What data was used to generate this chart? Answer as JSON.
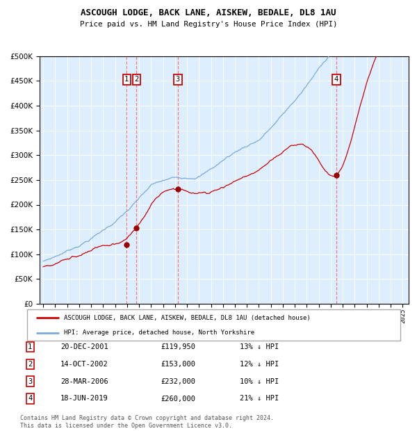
{
  "title": "ASCOUGH LODGE, BACK LANE, AISKEW, BEDALE, DL8 1AU",
  "subtitle": "Price paid vs. HM Land Registry's House Price Index (HPI)",
  "legend_line1": "ASCOUGH LODGE, BACK LANE, AISKEW, BEDALE, DL8 1AU (detached house)",
  "legend_line2": "HPI: Average price, detached house, North Yorkshire",
  "footer": "Contains HM Land Registry data © Crown copyright and database right 2024.\nThis data is licensed under the Open Government Licence v3.0.",
  "hpi_color": "#7aaadd",
  "price_color": "#cc0000",
  "bg_color": "#ddeeff",
  "grid_color": "#ffffff",
  "vline_color": "#ff6666",
  "marker_color": "#990000",
  "ylim": [
    0,
    500000
  ],
  "yticks": [
    0,
    50000,
    100000,
    150000,
    200000,
    250000,
    300000,
    350000,
    400000,
    450000,
    500000
  ],
  "xlim_start": 1995.0,
  "xlim_end": 2025.5,
  "transactions": [
    {
      "num": 1,
      "date_num": 2001.97,
      "price": 119950,
      "date_str": "20-DEC-2001",
      "pct": "13%"
    },
    {
      "num": 2,
      "date_num": 2002.79,
      "price": 153000,
      "date_str": "14-OCT-2002",
      "pct": "12%"
    },
    {
      "num": 3,
      "date_num": 2006.24,
      "price": 232000,
      "date_str": "28-MAR-2006",
      "pct": "10%"
    },
    {
      "num": 4,
      "date_num": 2019.46,
      "price": 260000,
      "date_str": "18-JUN-2019",
      "pct": "21%"
    }
  ],
  "table_rows": [
    {
      "num": "1",
      "date": "20-DEC-2001",
      "price": "£119,950",
      "pct": "13% ↓ HPI"
    },
    {
      "num": "2",
      "date": "14-OCT-2002",
      "price": "£153,000",
      "pct": "12% ↓ HPI"
    },
    {
      "num": "3",
      "date": "28-MAR-2006",
      "price": "£232,000",
      "pct": "10% ↓ HPI"
    },
    {
      "num": "4",
      "date": "18-JUN-2019",
      "price": "£260,000",
      "pct": "21% ↓ HPI"
    }
  ]
}
